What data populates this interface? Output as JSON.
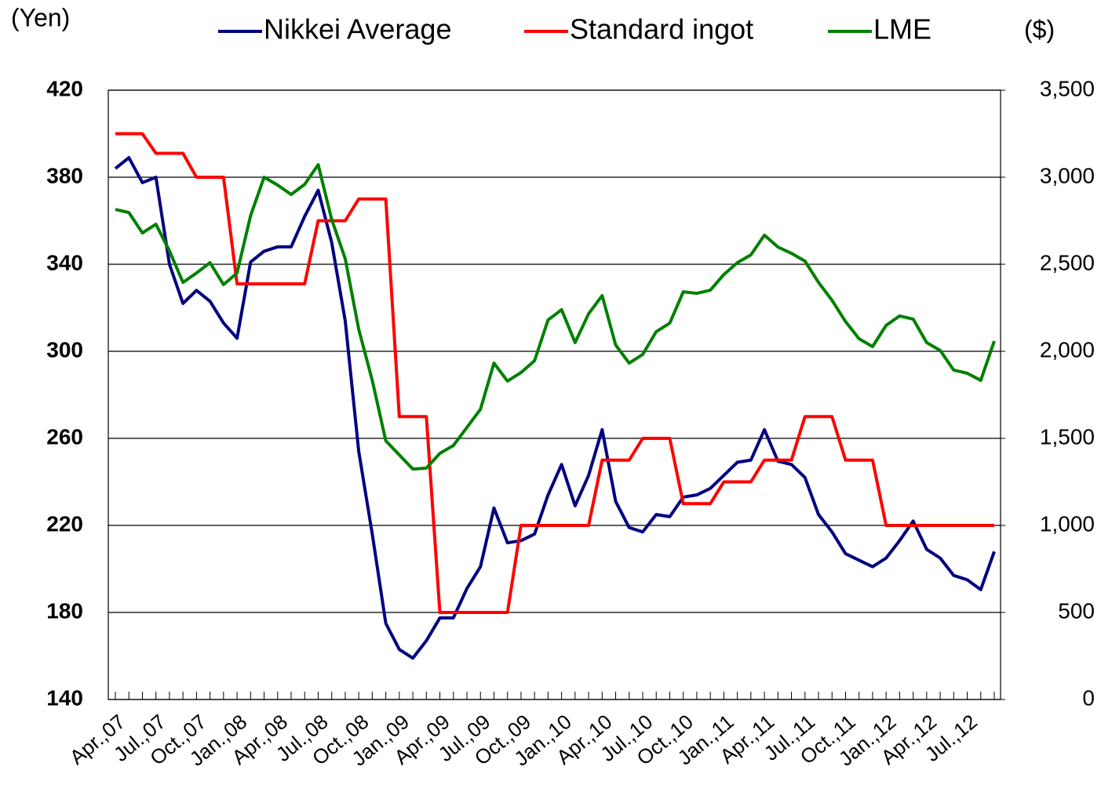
{
  "chart_data": {
    "type": "line",
    "y_label": "(Yen)",
    "y2_label": "($)",
    "categories": [
      "Apr.,07",
      null,
      null,
      "Jul.,07",
      null,
      null,
      "Oct.,07",
      null,
      null,
      "Jan.,08",
      null,
      null,
      "Apr.,08",
      null,
      null,
      "Jul.,08",
      null,
      null,
      "Oct.,08",
      null,
      null,
      "Jan.,09",
      null,
      null,
      "Apr.,09",
      null,
      null,
      "Jul.,09",
      null,
      null,
      "Oct.,09",
      null,
      null,
      "Jan.,10",
      null,
      null,
      "Apr.,10",
      null,
      null,
      "Jul.,10",
      null,
      null,
      "Oct.,10",
      null,
      null,
      "Jan.,11",
      null,
      null,
      "Apr.,11",
      null,
      null,
      "Jul.,11",
      null,
      null,
      "Oct.,11",
      null,
      null,
      "Jan.,12",
      null,
      null,
      "Apr.,12",
      null,
      null,
      "Jul.,12",
      null,
      null
    ],
    "series": [
      {
        "name": "Nikkei Average",
        "color": "#000080",
        "values": [
          384,
          389,
          377.5,
          380,
          340,
          322,
          328,
          323,
          313,
          306,
          341,
          346,
          348,
          348,
          362,
          374,
          350,
          314,
          254,
          216,
          175,
          163,
          159,
          167,
          177.5,
          177.5,
          191,
          201,
          228,
          212,
          213,
          216,
          234,
          248,
          229,
          243,
          264,
          231,
          219,
          217,
          225,
          224,
          233,
          234,
          237,
          243,
          249,
          250,
          264,
          249.5,
          248,
          242,
          225,
          217,
          207,
          204,
          201,
          205,
          213,
          222,
          209,
          205,
          197,
          195,
          190.5,
          208
        ]
      },
      {
        "name": "Standard ingot",
        "color": "#ff0000",
        "values": [
          400,
          400,
          400,
          391,
          391,
          391,
          380,
          380,
          380,
          331,
          331,
          331,
          331,
          331,
          331,
          360,
          360,
          360,
          370,
          370,
          370,
          270,
          270,
          270,
          180,
          180,
          180,
          180,
          180,
          180,
          220,
          220,
          220,
          220,
          220,
          220,
          250,
          250,
          250,
          260,
          260,
          260,
          230,
          230,
          230,
          240,
          240,
          240,
          250,
          250,
          250,
          270,
          270,
          270,
          250,
          250,
          250,
          220,
          220,
          220,
          220,
          220,
          220,
          220,
          220,
          220
        ]
      },
      {
        "name": "LME",
        "color": "#008000",
        "axis": "y2",
        "values": [
          2815,
          2797,
          2680,
          2730,
          2577,
          2396,
          2450,
          2509,
          2383,
          2450,
          2779,
          3000,
          2955,
          2901,
          2959,
          3072,
          2757,
          2532,
          2126,
          1833,
          1486,
          1405,
          1324,
          1329,
          1414,
          1459,
          1563,
          1667,
          1932,
          1829,
          1878,
          1946,
          2180,
          2239,
          2050,
          2216,
          2320,
          2036,
          1932,
          1982,
          2113,
          2162,
          2342,
          2333,
          2351,
          2441,
          2509,
          2554,
          2667,
          2599,
          2563,
          2518,
          2396,
          2293,
          2171,
          2072,
          2027,
          2149,
          2203,
          2185,
          2050,
          2005,
          1892,
          1874,
          1833,
          2059
        ]
      }
    ],
    "ylim": [
      140,
      420
    ],
    "yticks": [
      140,
      180,
      220,
      260,
      300,
      340,
      380,
      420
    ],
    "y2lim": [
      0,
      3500
    ],
    "y2ticks": [
      0,
      500,
      {
        "value": 1000,
        "label": "1,000"
      },
      {
        "value": 1500,
        "label": "1,500"
      },
      {
        "value": 2000,
        "label": "2,000"
      },
      {
        "value": 2500,
        "label": "2,500"
      },
      {
        "value": 3000,
        "label": "3,000"
      },
      {
        "value": 3500,
        "label": "3,500"
      }
    ],
    "grid": true,
    "legend": "top"
  }
}
